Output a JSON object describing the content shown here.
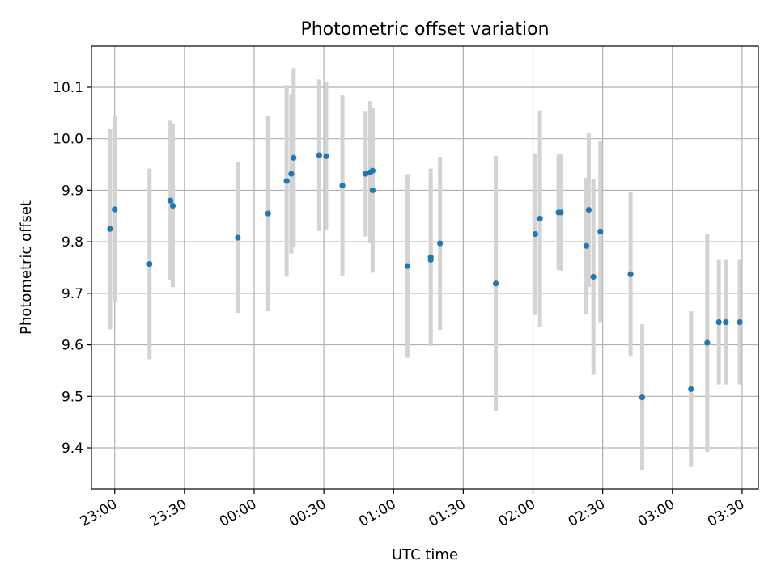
{
  "chart_data": {
    "type": "scatter",
    "title": "Photometric offset variation",
    "xlabel": "UTC time",
    "ylabel": "Photometric offset",
    "x_unit": "UTC clock time",
    "xlim": [
      "22:50",
      "03:37"
    ],
    "ylim": [
      9.32,
      10.18
    ],
    "x_ticks": [
      "23:00",
      "23:30",
      "00:00",
      "00:30",
      "01:00",
      "01:30",
      "02:00",
      "02:30",
      "03:00",
      "03:30"
    ],
    "y_ticks": [
      9.4,
      9.5,
      9.6,
      9.7,
      9.8,
      9.9,
      10.0,
      10.1
    ],
    "y_tick_labels": [
      "9.4",
      "9.5",
      "9.6",
      "9.7",
      "9.8",
      "9.9",
      "10.0",
      "10.1"
    ],
    "grid": true,
    "colors": {
      "marker": "#1f77b4",
      "errorbar": "#d3d3d3"
    },
    "points": [
      {
        "x": "22:58",
        "y": 9.825,
        "err": 0.195
      },
      {
        "x": "23:00",
        "y": 9.863,
        "err": 0.18
      },
      {
        "x": "23:15",
        "y": 9.757,
        "err": 0.185
      },
      {
        "x": "23:24",
        "y": 9.88,
        "err": 0.155
      },
      {
        "x": "23:25",
        "y": 9.87,
        "err": 0.158
      },
      {
        "x": "23:53",
        "y": 9.808,
        "err": 0.146
      },
      {
        "x": "00:06",
        "y": 9.855,
        "err": 0.19
      },
      {
        "x": "00:14",
        "y": 9.918,
        "err": 0.186
      },
      {
        "x": "00:16",
        "y": 9.932,
        "err": 0.155
      },
      {
        "x": "00:17",
        "y": 9.963,
        "err": 0.174
      },
      {
        "x": "00:28",
        "y": 9.968,
        "err": 0.147
      },
      {
        "x": "00:31",
        "y": 9.966,
        "err": 0.143
      },
      {
        "x": "00:38",
        "y": 9.909,
        "err": 0.175
      },
      {
        "x": "00:48",
        "y": 9.932,
        "err": 0.122
      },
      {
        "x": "00:50",
        "y": 9.935,
        "err": 0.138
      },
      {
        "x": "00:51",
        "y": 9.938,
        "err": 0.121
      },
      {
        "x": "00:51",
        "y": 9.9,
        "err": 0.16
      },
      {
        "x": "01:06",
        "y": 9.753,
        "err": 0.178
      },
      {
        "x": "01:16",
        "y": 9.77,
        "err": 0.172
      },
      {
        "x": "01:16",
        "y": 9.765,
        "err": 0.155
      },
      {
        "x": "01:20",
        "y": 9.797,
        "err": 0.168
      },
      {
        "x": "01:44",
        "y": 9.719,
        "err": 0.248
      },
      {
        "x": "02:01",
        "y": 9.815,
        "err": 0.157
      },
      {
        "x": "02:03",
        "y": 9.845,
        "err": 0.21
      },
      {
        "x": "02:11",
        "y": 9.857,
        "err": 0.112
      },
      {
        "x": "02:12",
        "y": 9.857,
        "err": 0.113
      },
      {
        "x": "02:23",
        "y": 9.792,
        "err": 0.132
      },
      {
        "x": "02:24",
        "y": 9.862,
        "err": 0.15
      },
      {
        "x": "02:26",
        "y": 9.732,
        "err": 0.19
      },
      {
        "x": "02:29",
        "y": 9.82,
        "err": 0.176
      },
      {
        "x": "02:42",
        "y": 9.737,
        "err": 0.16
      },
      {
        "x": "02:47",
        "y": 9.498,
        "err": 0.142
      },
      {
        "x": "03:08",
        "y": 9.514,
        "err": 0.151
      },
      {
        "x": "03:15",
        "y": 9.604,
        "err": 0.212
      },
      {
        "x": "03:20",
        "y": 9.644,
        "err": 0.121
      },
      {
        "x": "03:23",
        "y": 9.644,
        "err": 0.121
      },
      {
        "x": "03:29",
        "y": 9.644,
        "err": 0.121
      }
    ]
  }
}
